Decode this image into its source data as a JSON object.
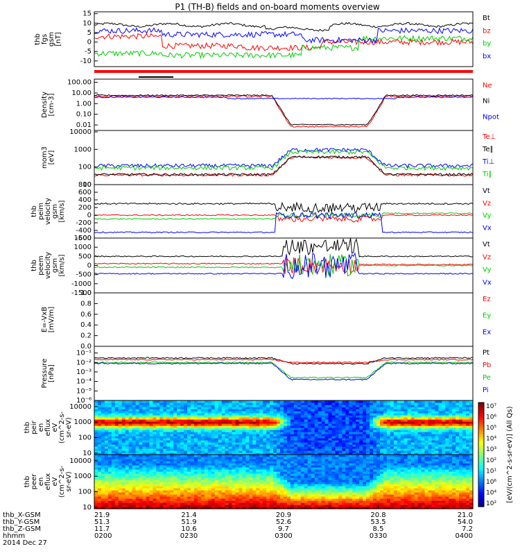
{
  "title": "P1 (TH-B) fields and on-board moments overview",
  "chart_data": [
    {
      "type": "line",
      "ylabel": [
        "thb",
        "fgs",
        "gsm",
        "[nT]"
      ],
      "ylim": [
        -13,
        16
      ],
      "yticks": [
        "15",
        "10",
        "5",
        "0",
        "-5",
        "-10"
      ],
      "ytick_values": [
        15,
        10,
        5,
        0,
        -5,
        -10
      ],
      "scale": "linear",
      "legend": [
        {
          "label": "Bt",
          "color": "#000000"
        },
        {
          "label": "bz",
          "color": "#ff0000"
        },
        {
          "label": "by",
          "color": "#00cc00"
        },
        {
          "label": "bx",
          "color": "#0000ff"
        }
      ]
    },
    {
      "type": "line",
      "ylabel": [
        "Density",
        "[cm-3]"
      ],
      "ylim": [
        0.003,
        200
      ],
      "yticks": [
        "100.00",
        "10.00",
        "1.00",
        "0.10",
        "0.01"
      ],
      "ytick_values": [
        100,
        10,
        1,
        0.1,
        0.01
      ],
      "scale": "log",
      "legend": [
        {
          "label": "Ne",
          "color": "#ff0000"
        },
        {
          "label": "Ni",
          "color": "#000000"
        },
        {
          "label": "Npot",
          "color": "#0000ff"
        }
      ]
    },
    {
      "type": "line",
      "ylabel": [
        "mom3",
        "[eV]"
      ],
      "ylim": [
        10,
        12000
      ],
      "yticks": [
        "10000",
        "1000",
        "100",
        "10"
      ],
      "ytick_values": [
        10000,
        1000,
        100,
        10
      ],
      "scale": "log",
      "legend": [
        {
          "label": "Te⊥",
          "color": "#ff0000"
        },
        {
          "label": "Te∥",
          "color": "#000000"
        },
        {
          "label": "Ti⊥",
          "color": "#0000ff"
        },
        {
          "label": "Ti∥",
          "color": "#00cc00"
        }
      ]
    },
    {
      "type": "line",
      "ylabel": [
        "thb",
        "peim",
        "velocity",
        "gsm",
        "[km/s]"
      ],
      "ylim": [
        -600,
        800
      ],
      "yticks": [
        "800",
        "600",
        "400",
        "200",
        "0",
        "-200",
        "-400",
        "-600"
      ],
      "ytick_values": [
        800,
        600,
        400,
        200,
        0,
        -200,
        -400,
        -600
      ],
      "scale": "linear",
      "legend": [
        {
          "label": "Vt",
          "color": "#000000"
        },
        {
          "label": "Vz",
          "color": "#ff0000"
        },
        {
          "label": "Vy",
          "color": "#00cc00"
        },
        {
          "label": "Vx",
          "color": "#0000ff"
        }
      ]
    },
    {
      "type": "line",
      "ylabel": [
        "thb",
        "peem",
        "velocity",
        "gsm",
        "[km/s]"
      ],
      "ylim": [
        -1500,
        1500
      ],
      "yticks": [
        "1500",
        "1000",
        "500",
        "0",
        "-500",
        "-1000",
        "-1500"
      ],
      "ytick_values": [
        1500,
        1000,
        500,
        0,
        -500,
        -1000,
        -1500
      ],
      "scale": "linear",
      "legend": [
        {
          "label": "Vt",
          "color": "#000000"
        },
        {
          "label": "Vz",
          "color": "#ff0000"
        },
        {
          "label": "Vy",
          "color": "#00cc00"
        },
        {
          "label": "Vx",
          "color": "#0000ff"
        }
      ]
    },
    {
      "type": "line",
      "ylabel": [
        "E=-VxB",
        "[mV/m]"
      ],
      "ylim": [
        0,
        1
      ],
      "yticks": [
        "1.0",
        "0.8",
        "0.6",
        "0.4",
        "0.2",
        "0.0"
      ],
      "ytick_values": [
        1.0,
        0.8,
        0.6,
        0.4,
        0.2,
        0.0
      ],
      "scale": "linear",
      "legend": [
        {
          "label": "Ez",
          "color": "#ff0000"
        },
        {
          "label": "Ey",
          "color": "#00cc00"
        },
        {
          "label": "Ex",
          "color": "#0000ff"
        }
      ]
    },
    {
      "type": "line",
      "ylabel": [
        "Pressure",
        "[nPa]"
      ],
      "ylim": [
        1e-06,
        0.5
      ],
      "yticks": [
        "10⁻¹",
        "10⁻²",
        "10⁻³",
        "10⁻⁴",
        "10⁻⁵",
        "10⁻⁶"
      ],
      "ytick_values": [
        0.1,
        0.01,
        0.001,
        0.0001,
        1e-05,
        1e-06
      ],
      "scale": "log",
      "legend": [
        {
          "label": "Pt",
          "color": "#000000"
        },
        {
          "label": "Pb",
          "color": "#ff0000"
        },
        {
          "label": "Pe",
          "color": "#00cc00"
        },
        {
          "label": "Pi",
          "color": "#0000ff"
        }
      ]
    },
    {
      "type": "heatmap",
      "ylabel": [
        "thb",
        "peir",
        "en",
        "eflux",
        "eV",
        "(cm^2-s-",
        "sr-eV)"
      ],
      "ylim": [
        8,
        25000
      ],
      "yticks": [
        "10000",
        "1000",
        "100",
        "10"
      ],
      "ytick_values": [
        10000,
        1000,
        100,
        10
      ],
      "scale": "log"
    },
    {
      "type": "heatmap",
      "ylabel": [
        "thb",
        "peer",
        "en",
        "eflux",
        "eV",
        "(cm^2-s-",
        "sr-eV)"
      ],
      "ylim": [
        8,
        25000
      ],
      "yticks": [
        "10000",
        "1000",
        "100",
        "10"
      ],
      "ytick_values": [
        10000,
        1000,
        100,
        10
      ],
      "scale": "log"
    }
  ],
  "colorbar": {
    "ticks": [
      "10⁷",
      "10⁶",
      "10⁵",
      "10⁴",
      "10³",
      "10²",
      "10¹",
      "10⁶",
      "10⁴",
      "10²"
    ],
    "label": "[eV/(cm^2-s-sr-eV)]   (All Qs)"
  },
  "xaxis": {
    "ticks": [
      "0200",
      "0230",
      "0300",
      "0330",
      "0400"
    ],
    "rows": [
      {
        "label": "thb_X-GSM",
        "values": [
          "21.9",
          "21.4",
          "20.9",
          "20.8",
          "21.0"
        ]
      },
      {
        "label": "thb_Y-GSM",
        "values": [
          "51.3",
          "51.9",
          "52.6",
          "53.5",
          "54.0"
        ]
      },
      {
        "label": "thb_Z-GSM",
        "values": [
          "11.7",
          "10.6",
          "9.7",
          "8.5",
          "7.2"
        ]
      },
      {
        "label": "hhmm",
        "values": [
          "0200",
          "0230",
          "0300",
          "0330",
          "0400"
        ]
      }
    ],
    "date": "2014 Dec 27"
  }
}
